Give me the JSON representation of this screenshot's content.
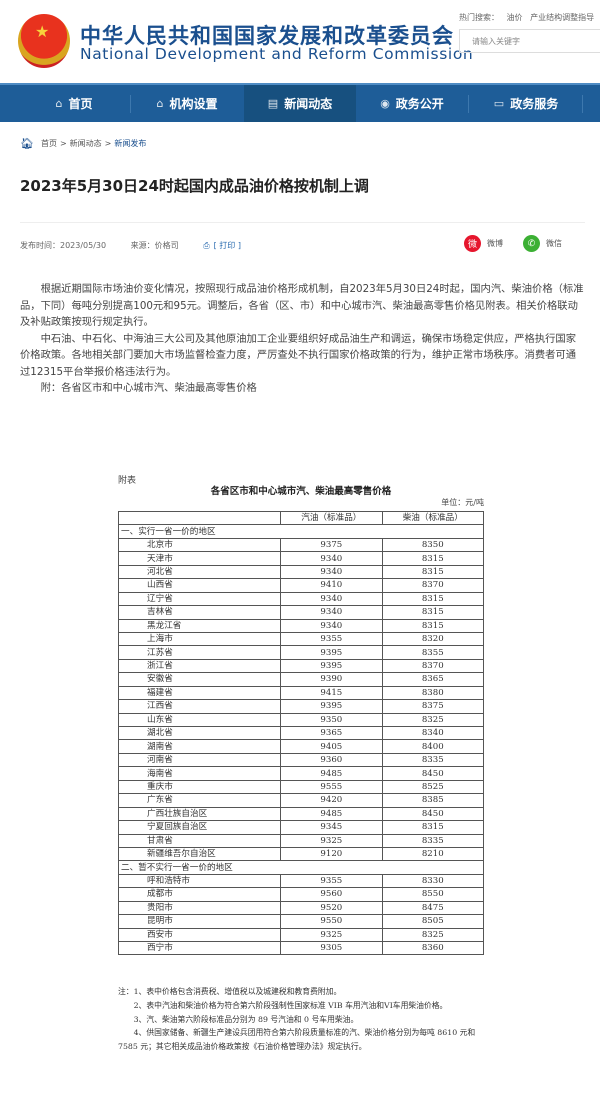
{
  "header": {
    "site_name_cn": "中华人民共和国国家发展和改革委员会",
    "site_name_en": "National Development and Reform Commission",
    "hot_search_label": "热门搜索：",
    "hot_search_items": [
      "油价",
      "产业结构调整指导"
    ],
    "search_placeholder": "请输入关键字"
  },
  "nav": [
    {
      "label": "首页",
      "icon": "home-icon"
    },
    {
      "label": "机构设置",
      "icon": "building-icon"
    },
    {
      "label": "新闻动态",
      "icon": "news-icon"
    },
    {
      "label": "政务公开",
      "icon": "broadcast-icon"
    },
    {
      "label": "政务服务",
      "icon": "document-icon"
    }
  ],
  "breadcrumb": [
    "首页",
    ">",
    "新闻动态",
    ">",
    "新闻发布"
  ],
  "article": {
    "title": "2023年5月30日24时起国内成品油价格按机制上调",
    "publish_time": "发布时间：2023/05/30",
    "source": "来源：价格司",
    "print": "[ 打印 ]",
    "share": [
      {
        "label": "微博",
        "color": "#e6162d"
      },
      {
        "label": "微信",
        "color": "#3cb034"
      }
    ],
    "paragraphs": [
      "根据近期国际市场油价变化情况，按照现行成品油价格形成机制，自2023年5月30日24时起，国内汽、柴油价格（标准品，下同）每吨分别提高100元和95元。调整后，各省（区、市）和中心城市汽、柴油最高零售价格见附表。相关价格联动及补贴政策按现行规定执行。",
      "中石油、中石化、中海油三大公司及其他原油加工企业要组织好成品油生产和调运，确保市场稳定供应，严格执行国家价格政策。各地相关部门要加大市场监督检查力度，严厉查处不执行国家价格政策的行为，维护正常市场秩序。消费者可通过12315平台举报价格违法行为。",
      "附：各省区市和中心城市汽、柴油最高零售价格"
    ]
  },
  "attachment": {
    "label": "附表",
    "title": "各省区市和中心城市汽、柴油最高零售价格",
    "unit": "单位：元/吨",
    "headers": [
      "",
      "汽油（标准品）",
      "柴油（标准品）"
    ],
    "sections": [
      {
        "name": "一、实行一省一价的地区",
        "rows": [
          [
            "北京市",
            "9375",
            "8350"
          ],
          [
            "天津市",
            "9340",
            "8315"
          ],
          [
            "河北省",
            "9340",
            "8315"
          ],
          [
            "山西省",
            "9410",
            "8370"
          ],
          [
            "辽宁省",
            "9340",
            "8315"
          ],
          [
            "吉林省",
            "9340",
            "8315"
          ],
          [
            "黑龙江省",
            "9340",
            "8315"
          ],
          [
            "上海市",
            "9355",
            "8320"
          ],
          [
            "江苏省",
            "9395",
            "8355"
          ],
          [
            "浙江省",
            "9395",
            "8370"
          ],
          [
            "安徽省",
            "9390",
            "8365"
          ],
          [
            "福建省",
            "9415",
            "8380"
          ],
          [
            "江西省",
            "9395",
            "8375"
          ],
          [
            "山东省",
            "9350",
            "8325"
          ],
          [
            "湖北省",
            "9365",
            "8340"
          ],
          [
            "湖南省",
            "9405",
            "8400"
          ],
          [
            "河南省",
            "9360",
            "8335"
          ],
          [
            "海南省",
            "9485",
            "8450"
          ],
          [
            "重庆市",
            "9555",
            "8525"
          ],
          [
            "广东省",
            "9420",
            "8385"
          ],
          [
            "广西壮族自治区",
            "9485",
            "8450"
          ],
          [
            "宁夏回族自治区",
            "9345",
            "8315"
          ],
          [
            "甘肃省",
            "9325",
            "8335"
          ],
          [
            "新疆维吾尔自治区",
            "9120",
            "8210"
          ]
        ]
      },
      {
        "name": "二、暂不实行一省一价的地区",
        "rows": [
          [
            "呼和浩特市",
            "9355",
            "8330"
          ],
          [
            "成都市",
            "9560",
            "8550"
          ],
          [
            "贵阳市",
            "9520",
            "8475"
          ],
          [
            "昆明市",
            "9550",
            "8505"
          ],
          [
            "西安市",
            "9325",
            "8325"
          ],
          [
            "西宁市",
            "9305",
            "8360"
          ]
        ]
      }
    ],
    "notes": [
      "注：1、表中价格包含消费税、增值税以及城建税和教育费附加。",
      "2、表中汽油和柴油价格为符合第六阶段强制性国家标准 VIB 车用汽油和VI车用柴油价格。",
      "3、汽、柴油第六阶段标准品分别为 89 号汽油和 0 号车用柴油。",
      "4、供国家储备、新疆生产建设兵团用符合第六阶段质量标准的汽、柴油价格分别为每吨 8610 元和 7585 元；其它相关成品油价格政策按《石油价格管理办法》规定执行。"
    ]
  }
}
